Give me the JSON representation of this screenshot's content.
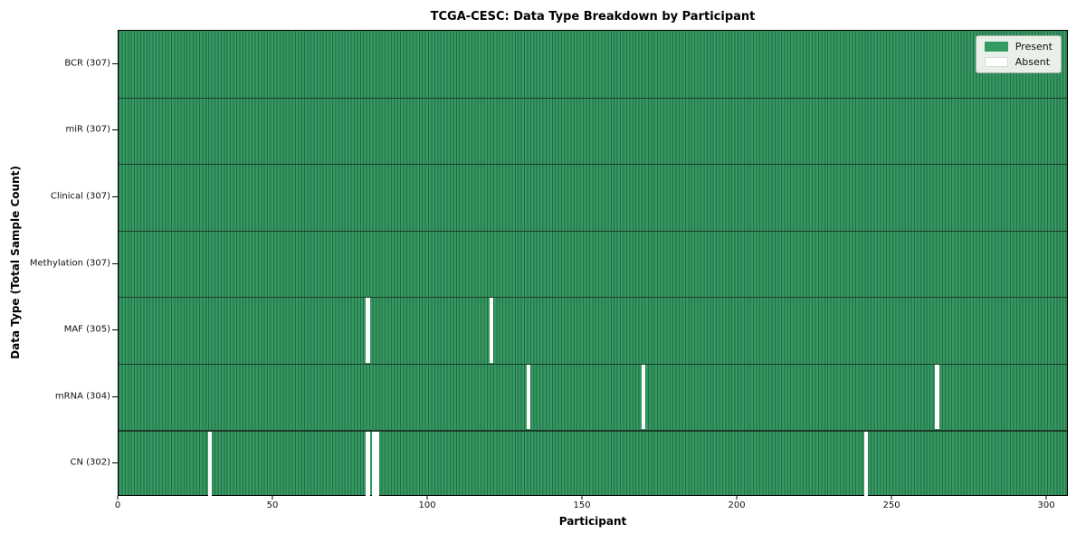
{
  "chart_data": {
    "type": "heatmap",
    "title": "TCGA-CESC: Data Type Breakdown by Participant",
    "xlabel": "Participant",
    "ylabel": "Data Type (Total Sample Count)",
    "x_ticks": [
      0,
      50,
      100,
      150,
      200,
      250,
      300
    ],
    "xlim": [
      0,
      307
    ],
    "n_participants": 307,
    "grid": false,
    "legend_position": "upper right",
    "legend": [
      {
        "label": "Present",
        "color": "#349a62"
      },
      {
        "label": "Absent",
        "color": "#ffffff"
      }
    ],
    "colors": {
      "present_fill": "#349a62",
      "cell_edge": "#266a46",
      "row_separator": "#1d3b28",
      "plot_border": "#000000",
      "legend_bg": "#e9efe9",
      "legend_border": "#aab4aa"
    },
    "rows": [
      {
        "label": "BCR (307)",
        "data_type": "BCR",
        "present_count": 307,
        "absent_participants": []
      },
      {
        "label": "miR (307)",
        "data_type": "miR",
        "present_count": 307,
        "absent_participants": []
      },
      {
        "label": "Clinical (307)",
        "data_type": "Clinical",
        "present_count": 307,
        "absent_participants": []
      },
      {
        "label": "Methylation (307)",
        "data_type": "Methylation",
        "present_count": 307,
        "absent_participants": []
      },
      {
        "label": "MAF (305)",
        "data_type": "MAF",
        "present_count": 305,
        "absent_participants": [
          80,
          120
        ]
      },
      {
        "label": "mRNA (304)",
        "data_type": "mRNA",
        "present_count": 304,
        "absent_participants": [
          132,
          169,
          264
        ]
      },
      {
        "label": "CN (302)",
        "data_type": "CN",
        "present_count": 302,
        "absent_participants": [
          29,
          80,
          82,
          83,
          241
        ]
      }
    ]
  }
}
